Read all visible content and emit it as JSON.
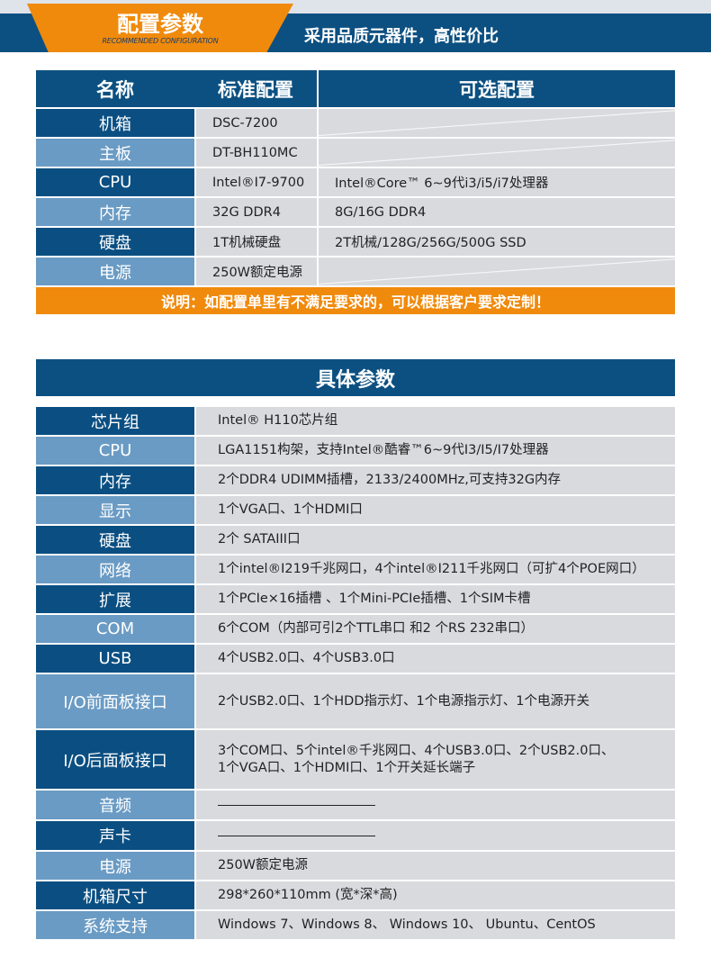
{
  "banner": {
    "title": "配置参数",
    "subtitle": "RECOMMENDED CONFIGURATION",
    "slogan": "采用品质元器件，高性价比"
  },
  "config": {
    "headers": [
      "名称",
      "标准配置",
      "可选配置"
    ],
    "rows": [
      {
        "name": "机箱",
        "standard": "DSC-7200",
        "optional": ""
      },
      {
        "name": "主板",
        "standard": "DT-BH110MC",
        "optional": ""
      },
      {
        "name": "CPU",
        "standard": "Intel®I7-9700",
        "optional": "Intel®Core™ 6~9代i3/i5/i7处理器"
      },
      {
        "name": "内存",
        "standard": "32G DDR4",
        "optional": "8G/16G DDR4"
      },
      {
        "name": "硬盘",
        "standard": "1T机械硬盘",
        "optional": "2T机械/128G/256G/500G SSD"
      },
      {
        "name": "电源",
        "standard": "250W额定电源",
        "optional": ""
      }
    ],
    "note": "说明：如配置单里有不满足要求的，可以根据客户要求定制！"
  },
  "specs": {
    "title": "具体参数",
    "rows": [
      {
        "name": "芯片组",
        "value": "Intel® H110芯片组"
      },
      {
        "name": "CPU",
        "value": "LGA1151构架，支持Intel®酷睿™6~9代I3/I5/I7处理器"
      },
      {
        "name": "内存",
        "value": "2个DDR4 UDIMM插槽，2133/2400MHz,可支持32G内存"
      },
      {
        "name": "显示",
        "value": "1个VGA口、1个HDMI口"
      },
      {
        "name": "硬盘",
        "value": "2个 SATAIII口"
      },
      {
        "name": "网络",
        "value": "1个intel®I219千兆网口，4个intel®I211千兆网口（可扩4个POE网口）"
      },
      {
        "name": "扩展",
        "value": "1个PCIe×16插槽 、1个Mini-PCIe插槽、1个SIM卡槽"
      },
      {
        "name": "COM",
        "value": "6个COM（内部可引2个TTL串口 和2 个RS 232串口）"
      },
      {
        "name": "USB",
        "value": "4个USB2.0口、4个USB3.0口"
      },
      {
        "name": "I/O前面板接口",
        "value": "2个USB2.0口、1个HDD指示灯、1个电源指示灯、1个电源开关"
      },
      {
        "name": "I/O后面板接口",
        "value": "3个COM口、5个intel®千兆网口、4个USB3.0口、2个USB2.0口、\n1个VGA口、1个HDMI口、1个开关延长端子"
      },
      {
        "name": "音频",
        "value": ""
      },
      {
        "name": "声卡",
        "value": ""
      },
      {
        "name": "电源",
        "value": "250W额定电源"
      },
      {
        "name": "机箱尺寸",
        "value": "298*260*110mm (宽*深*高)"
      },
      {
        "name": "系统支持",
        "value": "Windows 7、Windows 8、 Windows 10、 Ubuntu、CentOS"
      }
    ]
  },
  "colors": {
    "dark_blue": "#0b4f82",
    "light_blue": "#6a9bc4",
    "orange": "#f08a0c",
    "cell": "#d8dade"
  }
}
